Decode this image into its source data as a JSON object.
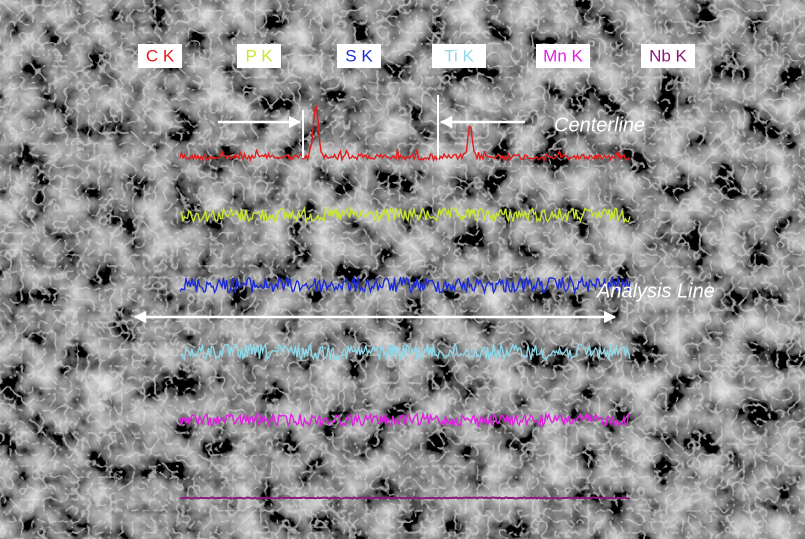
{
  "legend": [
    {
      "label": "C K",
      "color": "#e41b1b"
    },
    {
      "label": "P K",
      "color": "#c8e632"
    },
    {
      "label": "S K",
      "color": "#1c2bd6"
    },
    {
      "label": "Ti K",
      "color": "#8fd8e8"
    },
    {
      "label": "Mn K",
      "color": "#e020e0"
    },
    {
      "label": "Nb K",
      "color": "#8a1a7a"
    }
  ],
  "annotations": {
    "centerline": "Centerline",
    "analysis_line": "Analysis Line"
  }
}
